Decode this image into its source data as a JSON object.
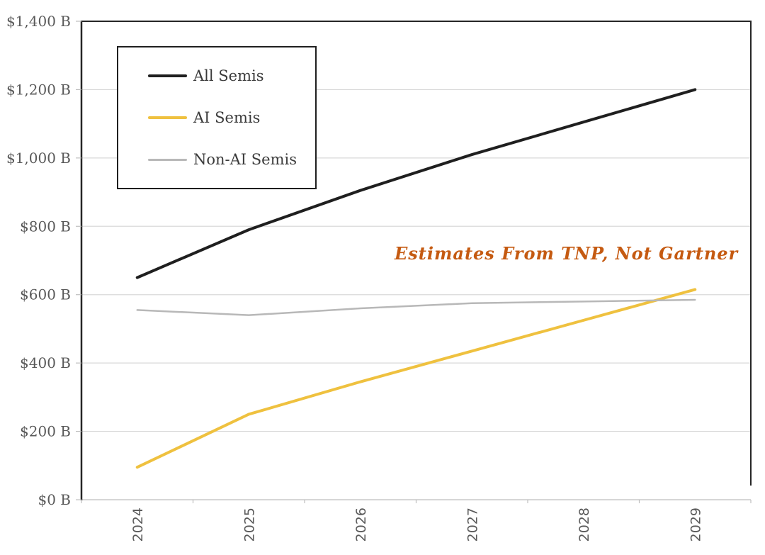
{
  "chart_data": {
    "type": "line",
    "x_categories": [
      "2024",
      "2025",
      "2026",
      "2027",
      "2028",
      "2029"
    ],
    "series": [
      {
        "name": "All Semis",
        "color": "#1f1f1f",
        "stroke_width": 4,
        "values": [
          650,
          790,
          905,
          1010,
          1105,
          1200
        ]
      },
      {
        "name": "AI Semis",
        "color": "#EFC13F",
        "stroke_width": 4,
        "values": [
          95,
          250,
          345,
          435,
          525,
          615
        ]
      },
      {
        "name": "Non-AI Semis",
        "color": "#B8B8B8",
        "stroke_width": 2.5,
        "values": [
          555,
          540,
          560,
          575,
          580,
          585
        ]
      }
    ],
    "ylim": [
      0,
      1400
    ],
    "ytick_step": 200,
    "ytick_labels": [
      "$0 B",
      "$200 B",
      "$400 B",
      "$600 B",
      "$800 B",
      "$1,000 B",
      "$1,200 B",
      "$1,400 B"
    ],
    "grid": "horizontal",
    "legend_position": "inside-top-left",
    "annotation": {
      "text": "Estimates From TNP, Not Gartner",
      "color": "#C55A11"
    },
    "colors": {
      "plot_border": "#262626",
      "gridline": "#D9D9D9",
      "bottom_axis": "#C8C8C8",
      "tick": "#BFBFBF",
      "tick_label": "#595959"
    }
  }
}
